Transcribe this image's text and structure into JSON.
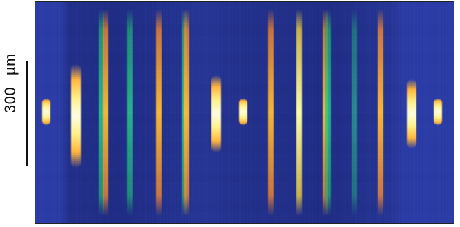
{
  "scale": {
    "value": "300",
    "unit": "µm"
  },
  "image": {
    "palette": {
      "background": "#2a3aa0",
      "fringe_green": "#22aa78",
      "fringe_orange": "#ff8c28",
      "fringe_yellow": "#fff18a"
    }
  }
}
